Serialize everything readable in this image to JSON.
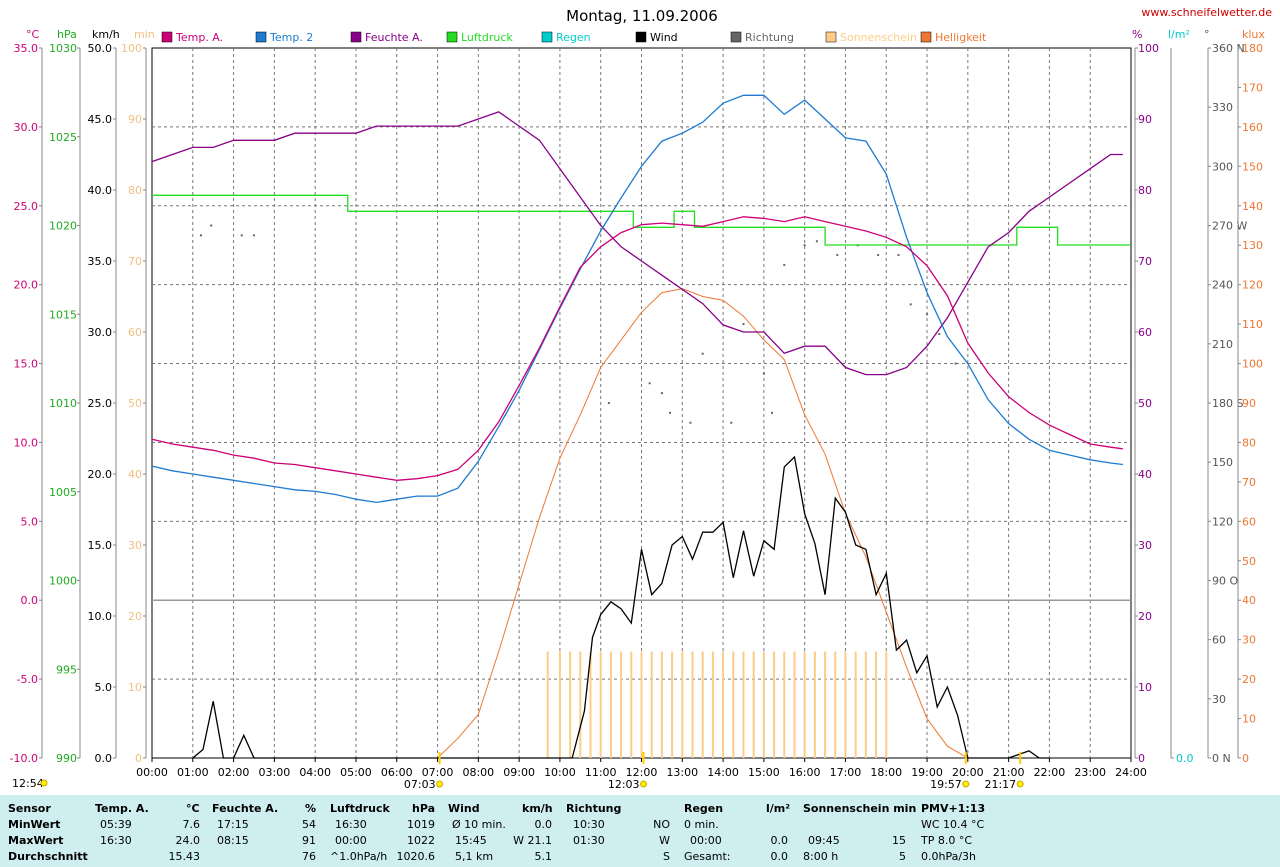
{
  "title": "Montag, 11.09.2006",
  "website": "www.schneifelwetter.de",
  "colors": {
    "temp_a": "#cc0077",
    "temp_2": "#1e7bd0",
    "feuchte": "#880088",
    "luftdruck": "#22dd22",
    "regen": "#00cccc",
    "wind": "#000000",
    "richtung": "#666666",
    "sonnenschein": "#ffcc88",
    "helligkeit": "#ee7733"
  },
  "left_axes": [
    {
      "unit": "°C",
      "color": "#cc0077",
      "ticks": [
        "35.0",
        "30.0",
        "25.0",
        "20.0",
        "15.0",
        "10.0",
        "5.0",
        "0.0",
        "-5.0",
        "-10.0"
      ]
    },
    {
      "unit": "hPa",
      "color": "#22aa22",
      "ticks": [
        "1030",
        "1025",
        "1020",
        "1015",
        "1010",
        "1005",
        "1000",
        "995",
        "990"
      ]
    },
    {
      "unit": "km/h",
      "color": "#000000",
      "ticks": [
        "50.0",
        "45.0",
        "40.0",
        "35.0",
        "30.0",
        "25.0",
        "20.0",
        "15.0",
        "10.0",
        "5.0",
        "0.0"
      ]
    },
    {
      "unit": "min",
      "color": "#f0c080",
      "ticks": [
        "100",
        "90",
        "80",
        "70",
        "60",
        "50",
        "40",
        "30",
        "20",
        "10",
        "0"
      ]
    }
  ],
  "right_axes": [
    {
      "unit": "%",
      "color": "#880088",
      "ticks": [
        "100",
        "90",
        "80",
        "70",
        "60",
        "50",
        "40",
        "30",
        "20",
        "10",
        "0"
      ]
    },
    {
      "unit": "l/m²",
      "color": "#00cccc",
      "ticks": [
        "0.0"
      ]
    },
    {
      "unit": "°",
      "color": "#555555",
      "ticks": [
        "360 N",
        "330",
        "300",
        "270 W",
        "240",
        "210",
        "180 S",
        "150",
        "120",
        "90 O",
        "60",
        "30",
        "0 N"
      ]
    },
    {
      "unit": "klux",
      "color": "#ee7733",
      "ticks": [
        "180",
        "170",
        "160",
        "150",
        "140",
        "130",
        "120",
        "110",
        "100",
        "90",
        "80",
        "70",
        "60",
        "50",
        "40",
        "30",
        "20",
        "10",
        "0"
      ]
    }
  ],
  "x_ticks": [
    "00:00",
    "01:00",
    "02:00",
    "03:00",
    "04:00",
    "05:00",
    "06:00",
    "07:00",
    "08:00",
    "09:00",
    "10:00",
    "11:00",
    "12:00",
    "13:00",
    "14:00",
    "15:00",
    "16:00",
    "17:00",
    "18:00",
    "19:00",
    "20:00",
    "21:00",
    "22:00",
    "23:00",
    "24:00"
  ],
  "sun_markers": {
    "sunrise": "07:03",
    "noon": "12:03",
    "sunset": "19:57",
    "moon": "21:17",
    "moonrise": "12:54"
  },
  "chart_data": {
    "type": "line",
    "title": "Montag, 11.09.2006",
    "x_unit": "hours",
    "xlim": [
      0,
      24
    ],
    "legend": [
      "Temp. A.",
      "Temp. 2",
      "Feuchte A.",
      "Luftdruck",
      "Regen",
      "Wind",
      "Richtung",
      "Sonnenschein",
      "Helligkeit"
    ],
    "legend_placement": "top",
    "grid": true,
    "series": [
      {
        "name": "Temp. A.",
        "unit": "°C",
        "ylim": [
          -10,
          35
        ],
        "x": [
          0,
          0.5,
          1,
          1.5,
          2,
          2.5,
          3,
          3.5,
          4,
          4.5,
          5,
          5.5,
          6,
          6.5,
          7,
          7.5,
          8,
          8.5,
          9,
          9.5,
          10,
          10.5,
          11,
          11.5,
          12,
          12.5,
          13,
          13.5,
          14,
          14.5,
          15,
          15.5,
          16,
          16.5,
          17,
          17.5,
          18,
          18.5,
          19,
          19.5,
          20,
          20.5,
          21,
          21.5,
          22,
          22.5,
          23,
          23.5,
          23.8
        ],
        "values": [
          10.2,
          9.9,
          9.7,
          9.5,
          9.2,
          9.0,
          8.7,
          8.6,
          8.4,
          8.2,
          8.0,
          7.8,
          7.6,
          7.7,
          7.9,
          8.3,
          9.5,
          11.3,
          13.6,
          16.0,
          18.6,
          21.1,
          22.4,
          23.3,
          23.8,
          23.9,
          23.8,
          23.7,
          24.0,
          24.3,
          24.2,
          24.0,
          24.3,
          24.0,
          23.7,
          23.4,
          23.0,
          22.4,
          21.2,
          19.3,
          16.3,
          14.4,
          12.9,
          11.9,
          11.1,
          10.5,
          9.9,
          9.7,
          9.6
        ]
      },
      {
        "name": "Temp. 2",
        "unit": "°C",
        "ylim": [
          -10,
          35
        ],
        "x": [
          0,
          0.5,
          1,
          1.5,
          2,
          2.5,
          3,
          3.5,
          4,
          4.5,
          5,
          5.5,
          6,
          6.5,
          7,
          7.5,
          8,
          8.5,
          9,
          9.5,
          10,
          10.5,
          11,
          11.5,
          12,
          12.5,
          13,
          13.5,
          14,
          14.5,
          15,
          15.5,
          16,
          16.5,
          17,
          17.5,
          18,
          18.5,
          19,
          19.5,
          20,
          20.5,
          21,
          21.5,
          22,
          22.5,
          23,
          23.5,
          23.8
        ],
        "values": [
          8.5,
          8.2,
          8.0,
          7.8,
          7.6,
          7.4,
          7.2,
          7.0,
          6.9,
          6.7,
          6.4,
          6.2,
          6.4,
          6.6,
          6.6,
          7.1,
          8.8,
          11.0,
          13.3,
          15.9,
          18.5,
          21.0,
          23.4,
          25.5,
          27.5,
          29.1,
          29.6,
          30.3,
          31.5,
          32.0,
          32.0,
          30.8,
          31.7,
          30.5,
          29.3,
          29.1,
          27.0,
          23.0,
          19.5,
          16.7,
          15.0,
          12.7,
          11.2,
          10.2,
          9.5,
          9.2,
          8.9,
          8.7,
          8.6
        ]
      },
      {
        "name": "Feuchte A.",
        "unit": "%",
        "ylim": [
          0,
          100
        ],
        "x": [
          0,
          0.5,
          1,
          1.5,
          2,
          2.5,
          3,
          3.5,
          4,
          4.5,
          5,
          5.5,
          6,
          6.5,
          7,
          7.5,
          8,
          8.5,
          9,
          9.5,
          10,
          10.5,
          11,
          11.5,
          12,
          12.5,
          13,
          13.5,
          14,
          14.5,
          15,
          15.5,
          16,
          16.5,
          17,
          17.5,
          18,
          18.5,
          19,
          19.5,
          20,
          20.5,
          21,
          21.5,
          22,
          22.5,
          23,
          23.5,
          23.8
        ],
        "values": [
          84,
          85,
          86,
          86,
          87,
          87,
          87,
          88,
          88,
          88,
          88,
          89,
          89,
          89,
          89,
          89,
          90,
          91,
          89,
          87,
          83,
          79,
          75,
          72,
          70,
          68,
          66,
          64,
          61,
          60,
          60,
          57,
          58,
          58,
          55,
          54,
          54,
          55,
          58,
          62,
          67,
          72,
          74,
          77,
          79,
          81,
          83,
          85,
          85
        ]
      },
      {
        "name": "Luftdruck",
        "unit": "hPa",
        "ylim": [
          990,
          1030
        ],
        "x": [
          0,
          4.8,
          4.8,
          11.8,
          11.8,
          12.8,
          12.8,
          13.3,
          13.3,
          16.5,
          16.5,
          21.2,
          21.2,
          22.2,
          22.2,
          24
        ],
        "values": [
          1021.7,
          1021.7,
          1020.8,
          1020.8,
          1019.9,
          1019.9,
          1020.8,
          1020.8,
          1019.9,
          1019.9,
          1018.9,
          1018.9,
          1019.9,
          1019.9,
          1018.9,
          1018.9
        ]
      },
      {
        "name": "Regen",
        "unit": "l/m²",
        "ylim": [
          0,
          1
        ],
        "x": [
          0,
          24
        ],
        "values": [
          0,
          0
        ]
      },
      {
        "name": "Wind",
        "unit": "km/h",
        "ylim": [
          0,
          50
        ],
        "x": [
          1,
          1.25,
          1.5,
          1.75,
          2,
          2.25,
          2.5,
          10.3,
          10.6,
          10.8,
          11,
          11.25,
          11.5,
          11.75,
          12,
          12.25,
          12.5,
          12.75,
          13,
          13.25,
          13.5,
          13.75,
          14,
          14.25,
          14.5,
          14.75,
          15,
          15.25,
          15.5,
          15.75,
          16,
          16.25,
          16.5,
          16.75,
          17,
          17.25,
          17.5,
          17.75,
          18,
          18.25,
          18.5,
          18.75,
          19,
          19.25,
          19.5,
          19.75,
          20,
          20.5,
          21,
          21.5,
          21.75,
          22
        ],
        "values": [
          0,
          0.6,
          4,
          0,
          0,
          1.6,
          0,
          0,
          3.3,
          8.5,
          10.1,
          11,
          10.5,
          9.5,
          14.7,
          11.5,
          12.3,
          15,
          15.6,
          14,
          15.9,
          15.9,
          16.6,
          12.7,
          16,
          12.8,
          15.3,
          14.7,
          20.5,
          21.2,
          17.2,
          15.1,
          11.5,
          18.3,
          17.3,
          15,
          14.7,
          11.5,
          13,
          7.6,
          8.3,
          6,
          7.2,
          3.6,
          5,
          3.0,
          0,
          0,
          0,
          0.5,
          0,
          0
        ]
      },
      {
        "name": "Richtung",
        "unit": "°",
        "ylim": [
          0,
          360
        ],
        "x": [
          1.2,
          1.45,
          2.2,
          2.5,
          11.2,
          12.2,
          12.5,
          12.7,
          13.2,
          13.5,
          14.2,
          14.5,
          15,
          15.2,
          15.5,
          16,
          16.3,
          16.8,
          17.3,
          17.8,
          18.3,
          18.6,
          19,
          19.3,
          19.7
        ],
        "values": [
          265,
          270,
          265,
          265,
          180,
          190,
          185,
          175,
          170,
          205,
          170,
          220,
          195,
          175,
          250,
          260,
          262,
          255,
          260,
          255,
          255,
          230,
          225,
          215,
          200
        ]
      },
      {
        "name": "Sonnenschein",
        "unit": "min",
        "ylim": [
          0,
          100
        ],
        "x": [
          9.7,
          10.0,
          10.25,
          10.5,
          10.75,
          11.0,
          11.25,
          11.5,
          11.75,
          12.0,
          12.25,
          12.5,
          12.75,
          13.0,
          13.25,
          13.5,
          13.75,
          14.0,
          14.25,
          14.5,
          14.75,
          15.0,
          15.25,
          15.5,
          15.75,
          16.0,
          16.25,
          16.5,
          16.75,
          17.0,
          17.25,
          17.5,
          17.75,
          18.0
        ],
        "values": [
          15,
          15,
          15,
          15,
          15,
          15,
          15,
          15,
          15,
          15,
          15,
          15,
          15,
          15,
          15,
          15,
          15,
          15,
          15,
          15,
          15,
          15,
          15,
          15,
          15,
          15,
          15,
          15,
          15,
          15,
          15,
          15,
          15,
          15
        ]
      },
      {
        "name": "Helligkeit",
        "unit": "klux",
        "ylim": [
          0,
          180
        ],
        "x": [
          7.0,
          7.5,
          8.0,
          8.5,
          9.0,
          9.5,
          10.0,
          10.5,
          11.0,
          11.5,
          12.0,
          12.5,
          13.0,
          13.5,
          14.0,
          14.5,
          15.0,
          15.5,
          16.0,
          16.5,
          17.0,
          17.5,
          18.0,
          18.5,
          19.0,
          19.5,
          20.0,
          20.5
        ],
        "values": [
          0,
          5,
          11,
          27,
          44,
          61,
          76,
          87,
          99,
          106,
          113,
          118,
          119,
          117,
          116,
          112,
          106,
          101,
          87,
          77,
          62,
          51,
          37,
          23,
          10,
          3,
          0,
          0
        ]
      }
    ]
  },
  "stats": {
    "labels": [
      "Sensor",
      "MinWert",
      "MaxWert",
      "Durchschnitt"
    ],
    "temp": {
      "head": "Temp. A.",
      "unit": "°C",
      "min_time": "05:39",
      "min_val": "7.6",
      "max_time": "16:30",
      "max_val": "24.0",
      "avg_val": "15.43"
    },
    "feuchte": {
      "head": "Feuchte A.",
      "unit": "%",
      "min_time": "17:15",
      "min_val": "54",
      "max_time": "08:15",
      "max_val": "91",
      "avg_val": "76"
    },
    "druck": {
      "head": "Luftdruck",
      "unit": "hPa",
      "min_time": "16:30",
      "min_val": "1019",
      "max_time": "00:00",
      "max_val": "1022",
      "avg_label": "^1.0hPa/h",
      "avg_val": "1020.6"
    },
    "wind": {
      "head": "Wind",
      "unit": "km/h",
      "row1_label": "Ø 10 min.",
      "row1_val": "0.0",
      "row2_label": "15:45",
      "row2_val": "W 21.1",
      "row3_label": "5,1 km",
      "row3_val": "5.1"
    },
    "richtung": {
      "head": "Richtung",
      "row1_time": "10:30",
      "row1_val": "NO",
      "row2_time": "01:30",
      "row2_val": "W",
      "row3_val": "S"
    },
    "regen": {
      "head": "Regen",
      "unit": "l/m²",
      "row1_label": "0 min.",
      "row1_val": "",
      "row2_label": "00:00",
      "row2_val": "0.0",
      "row3_label": "Gesamt:",
      "row3_val": "0.0"
    },
    "sonne": {
      "head": "Sonnenschein min",
      "row2_label": "09:45",
      "row2_val": "15",
      "row3_label": "8:00 h",
      "row3_val": "5"
    },
    "pmv": {
      "head": "PMV+1:13",
      "row1": "WC 10.4 °C",
      "row2": "TP 8.0 °C",
      "row3": "0.0hPa/3h"
    }
  }
}
